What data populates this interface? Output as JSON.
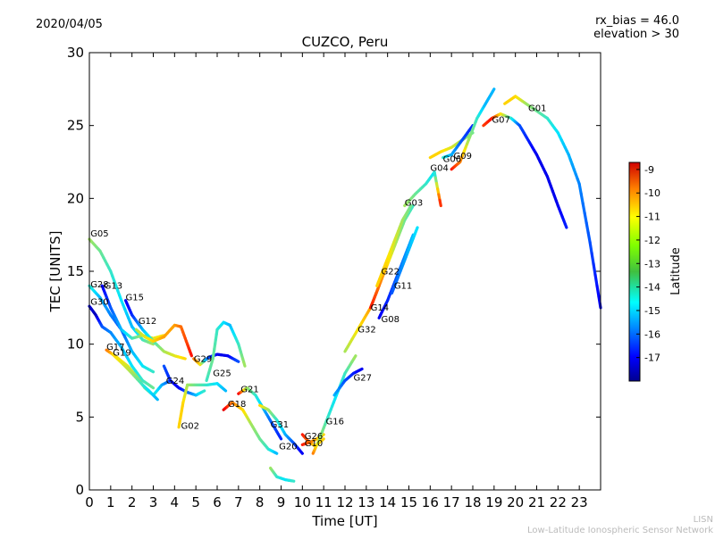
{
  "chart_data": {
    "type": "scatter",
    "title": "CUZCO, Peru",
    "date": "2020/04/05",
    "top_right": [
      "rx_bias = 46.0",
      "elevation > 30"
    ],
    "xlabel": "Time [UT]",
    "ylabel": "TEC [UNITS]",
    "xlim": [
      0,
      24
    ],
    "ylim": [
      0,
      30
    ],
    "x_ticks": [
      "0",
      "1",
      "2",
      "3",
      "4",
      "5",
      "6",
      "7",
      "8",
      "9",
      "10",
      "11",
      "12",
      "13",
      "14",
      "15",
      "16",
      "17",
      "18",
      "19",
      "20",
      "21",
      "22",
      "23"
    ],
    "y_ticks": [
      "0",
      "5",
      "10",
      "15",
      "20",
      "25",
      "30"
    ],
    "grid": false,
    "colorbar": {
      "label": "Latitude",
      "range": [
        -18,
        -8.7
      ],
      "ticks": [
        "-9",
        "-10",
        "-11",
        "-12",
        "-13",
        "-14",
        "-15",
        "-16",
        "-17"
      ],
      "colormap": "jet"
    },
    "footer": [
      "LISN",
      "Low-Latitude Ionospheric Sensor Network"
    ],
    "series": [
      {
        "name": "G05",
        "label_at": [
          0.05,
          17.4
        ],
        "points": [
          [
            0,
            17.2,
            -13
          ],
          [
            0.5,
            16.4,
            -13.5
          ],
          [
            1,
            15,
            -14
          ],
          [
            1.5,
            13,
            -14.5
          ],
          [
            2,
            11.2,
            -15
          ],
          [
            2.5,
            10.3,
            -14
          ],
          [
            3,
            10,
            -13
          ]
        ]
      },
      {
        "name": "G28",
        "label_at": [
          0.05,
          13.9
        ],
        "points": [
          [
            0,
            14,
            -14
          ],
          [
            0.5,
            13.2,
            -15
          ],
          [
            1,
            12,
            -15.5
          ],
          [
            1.5,
            11,
            -16
          ],
          [
            2,
            9.5,
            -15
          ],
          [
            2.5,
            8.5,
            -14.5
          ],
          [
            3,
            8.1,
            -14
          ]
        ]
      },
      {
        "name": "G13",
        "label_at": [
          0.7,
          13.8
        ],
        "points": [
          [
            0.6,
            14,
            -17
          ],
          [
            1,
            12.5,
            -16
          ],
          [
            1.5,
            11,
            -15
          ],
          [
            2,
            10.4,
            -14
          ],
          [
            2.5,
            10.6,
            -13
          ],
          [
            3,
            10.4,
            -12.5
          ],
          [
            3.5,
            10.6,
            -12
          ]
        ]
      },
      {
        "name": "G30",
        "label_at": [
          0.05,
          12.7
        ],
        "points": [
          [
            0,
            12.6,
            -17
          ],
          [
            0.3,
            12,
            -17.5
          ],
          [
            0.6,
            11.2,
            -16
          ],
          [
            1,
            10.8,
            -15.5
          ],
          [
            1.5,
            9.8,
            -15
          ],
          [
            2,
            8.5,
            -14.5
          ],
          [
            2.5,
            7.5,
            -14
          ],
          [
            3,
            7,
            -13.5
          ]
        ]
      },
      {
        "name": "G15",
        "label_at": [
          1.7,
          13.0
        ],
        "points": [
          [
            1.7,
            13,
            -17
          ],
          [
            2,
            12,
            -16.5
          ],
          [
            2.5,
            11,
            -15
          ],
          [
            3,
            10.2,
            -14
          ],
          [
            3.5,
            9.5,
            -13
          ],
          [
            4,
            9.2,
            -12.5
          ],
          [
            4.5,
            9,
            -12
          ]
        ]
      },
      {
        "name": "G12",
        "label_at": [
          2.3,
          11.4
        ],
        "points": [
          [
            2.2,
            11,
            -13
          ],
          [
            2.6,
            10.5,
            -12.5
          ],
          [
            3,
            10.2,
            -12
          ],
          [
            3.5,
            10.5,
            -11.5
          ],
          [
            4,
            11.3,
            -11.5
          ],
          [
            4.3,
            11.2,
            -11
          ],
          [
            4.6,
            10,
            -10.5
          ],
          [
            4.8,
            9.2,
            -10
          ]
        ]
      },
      {
        "name": "G17",
        "label_at": [
          0.8,
          9.6
        ],
        "points": [
          [
            0.8,
            9.6,
            -11
          ],
          [
            1.2,
            9.2,
            -12
          ],
          [
            1.8,
            8.5,
            -12.5
          ],
          [
            2.2,
            7.8,
            -13
          ],
          [
            2.6,
            7,
            -13.5
          ],
          [
            3,
            6.5,
            -14
          ],
          [
            3.4,
            7.2,
            -15
          ],
          [
            3.8,
            7.5,
            -16
          ]
        ]
      },
      {
        "name": "G19",
        "label_at": [
          1.1,
          9.2
        ],
        "points": [
          [
            1.1,
            9.3,
            -12
          ],
          [
            1.6,
            8.6,
            -12.5
          ],
          [
            2,
            8,
            -13
          ],
          [
            2.5,
            7.2,
            -14
          ],
          [
            2.8,
            6.8,
            -14.5
          ],
          [
            3.2,
            6.2,
            -15
          ]
        ]
      },
      {
        "name": "G24",
        "label_at": [
          3.6,
          7.3
        ],
        "points": [
          [
            3.5,
            8.5,
            -16
          ],
          [
            3.8,
            7.5,
            -16.5
          ],
          [
            4.2,
            7,
            -17
          ],
          [
            4.6,
            6.7,
            -16
          ],
          [
            5,
            6.5,
            -15
          ],
          [
            5.4,
            6.8,
            -14
          ]
        ]
      },
      {
        "name": "G29",
        "label_at": [
          4.9,
          8.8
        ],
        "points": [
          [
            4.9,
            9,
            -11
          ],
          [
            5.2,
            8.6,
            -12
          ],
          [
            5.6,
            9.1,
            -16
          ],
          [
            6,
            9.3,
            -17
          ],
          [
            6.5,
            9.2,
            -17
          ],
          [
            7,
            8.8,
            -16
          ]
        ]
      },
      {
        "name": "G25",
        "label_at": [
          5.8,
          7.8
        ],
        "points": [
          [
            5.5,
            7.5,
            -14
          ],
          [
            5.8,
            9,
            -13.5
          ],
          [
            6,
            11,
            -14
          ],
          [
            6.3,
            11.5,
            -14.5
          ],
          [
            6.6,
            11.3,
            -15
          ],
          [
            7,
            10,
            -14
          ],
          [
            7.3,
            8.5,
            -13
          ]
        ]
      },
      {
        "name": "G02",
        "label_at": [
          4.3,
          4.2
        ],
        "points": [
          [
            4.2,
            4.3,
            -12
          ],
          [
            4.4,
            6,
            -12
          ],
          [
            4.6,
            7.2,
            -13
          ],
          [
            5,
            7.2,
            -13.5
          ],
          [
            5.5,
            7.2,
            -14
          ],
          [
            6,
            7.3,
            -14.5
          ],
          [
            6.4,
            6.8,
            -15
          ]
        ]
      },
      {
        "name": "G21",
        "label_at": [
          7.1,
          6.7
        ],
        "points": [
          [
            7,
            6.6,
            -9.5
          ],
          [
            7.4,
            7,
            -13
          ],
          [
            7.8,
            6.5,
            -14
          ],
          [
            8.2,
            5.5,
            -15
          ],
          [
            8.6,
            4.5,
            -16
          ],
          [
            9,
            3.5,
            -16.5
          ]
        ]
      },
      {
        "name": "G18",
        "label_at": [
          6.5,
          5.7
        ],
        "points": [
          [
            6.3,
            5.5,
            -9.5
          ],
          [
            6.7,
            6,
            -11
          ],
          [
            7.2,
            5.5,
            -12
          ],
          [
            7.6,
            4.5,
            -13
          ],
          [
            8,
            3.5,
            -13.5
          ],
          [
            8.4,
            2.8,
            -14
          ],
          [
            8.8,
            2.5,
            -15
          ]
        ]
      },
      {
        "name": "G31",
        "label_at": [
          8.5,
          4.3
        ],
        "points": [
          [
            8,
            5.8,
            -12
          ],
          [
            8.4,
            5.5,
            -13
          ],
          [
            8.8,
            4.8,
            -14
          ],
          [
            9.2,
            3.8,
            -15
          ],
          [
            9.6,
            3.2,
            -16
          ],
          [
            10,
            2.5,
            -17
          ]
        ]
      },
      {
        "name": "G20",
        "label_at": [
          8.9,
          2.8
        ],
        "points": [
          [
            8.5,
            1.5,
            -13
          ],
          [
            8.8,
            0.9,
            -14
          ],
          [
            9.2,
            0.7,
            -14.5
          ],
          [
            9.6,
            0.6,
            -14
          ]
        ]
      },
      {
        "name": "G26",
        "label_at": [
          10.1,
          3.5
        ],
        "points": [
          [
            10,
            3.8,
            -10
          ],
          [
            10.3,
            3.3,
            -11
          ],
          [
            10.6,
            3,
            -12
          ],
          [
            11,
            3.5,
            -12
          ]
        ]
      },
      {
        "name": "G10",
        "label_at": [
          10.1,
          3.0
        ],
        "points": [
          [
            10,
            3.1,
            -10
          ],
          [
            10.4,
            3.3,
            -11
          ],
          [
            10.8,
            3.6,
            -12
          ],
          [
            11,
            3.8,
            -12
          ]
        ]
      },
      {
        "name": "G16",
        "label_at": [
          11.1,
          4.5
        ],
        "points": [
          [
            10.5,
            2.5,
            -11
          ],
          [
            10.8,
            3.5,
            -13
          ],
          [
            11.2,
            5,
            -14
          ],
          [
            11.6,
            6.5,
            -14.5
          ],
          [
            12,
            8,
            -14
          ],
          [
            12.5,
            9.2,
            -13
          ]
        ]
      },
      {
        "name": "G27",
        "label_at": [
          12.4,
          7.5
        ],
        "points": [
          [
            11.5,
            6.5,
            -15
          ],
          [
            12,
            7.5,
            -16
          ],
          [
            12.4,
            8,
            -16.5
          ],
          [
            12.8,
            8.3,
            -17
          ]
        ]
      },
      {
        "name": "G32",
        "label_at": [
          12.6,
          10.8
        ],
        "points": [
          [
            12,
            9.5,
            -13
          ],
          [
            12.4,
            10.5,
            -12.5
          ],
          [
            12.8,
            11.5,
            -12
          ],
          [
            13.2,
            12.5,
            -11.5
          ],
          [
            13.6,
            14,
            -11
          ]
        ]
      },
      {
        "name": "G14",
        "label_at": [
          13.2,
          12.3
        ],
        "points": [
          [
            13.2,
            12.5,
            -10
          ],
          [
            13.6,
            14,
            -11
          ],
          [
            14,
            15.5,
            -12
          ],
          [
            14.4,
            17,
            -13
          ],
          [
            14.8,
            18.5,
            -13.5
          ],
          [
            15.2,
            19.5,
            -14
          ]
        ]
      },
      {
        "name": "G08",
        "label_at": [
          13.7,
          11.5
        ],
        "points": [
          [
            13.6,
            11.8,
            -17
          ],
          [
            14,
            13,
            -16.5
          ],
          [
            14.4,
            14.5,
            -16
          ],
          [
            14.8,
            16,
            -15.5
          ],
          [
            15.2,
            17.5,
            -15
          ]
        ]
      },
      {
        "name": "G22",
        "label_at": [
          13.7,
          14.8
        ],
        "points": [
          [
            13.5,
            14,
            -12
          ],
          [
            13.9,
            15.5,
            -12
          ],
          [
            14.3,
            17,
            -12.5
          ],
          [
            14.7,
            18.5,
            -13
          ],
          [
            15.1,
            19.5,
            -13.5
          ]
        ]
      },
      {
        "name": "G11",
        "label_at": [
          14.3,
          13.8
        ],
        "points": [
          [
            14.2,
            13.5,
            -16
          ],
          [
            14.6,
            15,
            -15.5
          ],
          [
            15,
            16.5,
            -15
          ],
          [
            15.4,
            18,
            -14.5
          ]
        ]
      },
      {
        "name": "G03",
        "label_at": [
          14.8,
          19.5
        ],
        "points": [
          [
            14.8,
            19.5,
            -13
          ],
          [
            15.3,
            20.3,
            -13.5
          ],
          [
            15.8,
            21,
            -14
          ],
          [
            16.2,
            21.8,
            -14.5
          ],
          [
            16.5,
            19.5,
            -10
          ]
        ]
      },
      {
        "name": "G04",
        "label_at": [
          16.0,
          21.9
        ],
        "points": [
          [
            16,
            22.8,
            -12
          ],
          [
            16.5,
            23.2,
            -12
          ],
          [
            17,
            23.5,
            -12.5
          ],
          [
            17.5,
            24,
            -13
          ],
          [
            18,
            24.5,
            -13.5
          ]
        ]
      },
      {
        "name": "G06",
        "label_at": [
          16.6,
          22.5
        ],
        "points": [
          [
            16.6,
            22.8,
            -14
          ],
          [
            17,
            23,
            -15
          ],
          [
            17.5,
            24,
            -16
          ],
          [
            18,
            25,
            -16.5
          ]
        ]
      },
      {
        "name": "G09",
        "label_at": [
          17.1,
          22.7
        ],
        "points": [
          [
            17,
            22,
            -10
          ],
          [
            17.4,
            22.5,
            -11
          ],
          [
            17.8,
            24,
            -13
          ],
          [
            18.2,
            25.5,
            -14
          ],
          [
            18.6,
            26.5,
            -15
          ],
          [
            19,
            27.5,
            -15
          ]
        ]
      },
      {
        "name": "G07",
        "label_at": [
          18.9,
          25.2
        ],
        "points": [
          [
            18.5,
            25,
            -10.5
          ],
          [
            18.9,
            25.5,
            -10
          ],
          [
            19.3,
            25.8,
            -12
          ],
          [
            19.8,
            25.5,
            -14
          ],
          [
            20.2,
            25,
            -16
          ],
          [
            20.6,
            24,
            -16.5
          ],
          [
            21,
            23,
            -17
          ],
          [
            21.5,
            21.5,
            -17
          ],
          [
            22,
            19.5,
            -17
          ],
          [
            22.4,
            18,
            -16.5
          ]
        ]
      },
      {
        "name": "G01",
        "label_at": [
          20.6,
          26.0
        ],
        "points": [
          [
            19.5,
            26.5,
            -12
          ],
          [
            20,
            27,
            -12
          ],
          [
            20.5,
            26.5,
            -13
          ],
          [
            21,
            26,
            -13.5
          ],
          [
            21.5,
            25.5,
            -14
          ],
          [
            22,
            24.5,
            -14.5
          ],
          [
            22.5,
            23,
            -15
          ],
          [
            23,
            21,
            -15.5
          ],
          [
            23.5,
            17,
            -16
          ],
          [
            24,
            12.5,
            -17
          ]
        ]
      }
    ]
  }
}
